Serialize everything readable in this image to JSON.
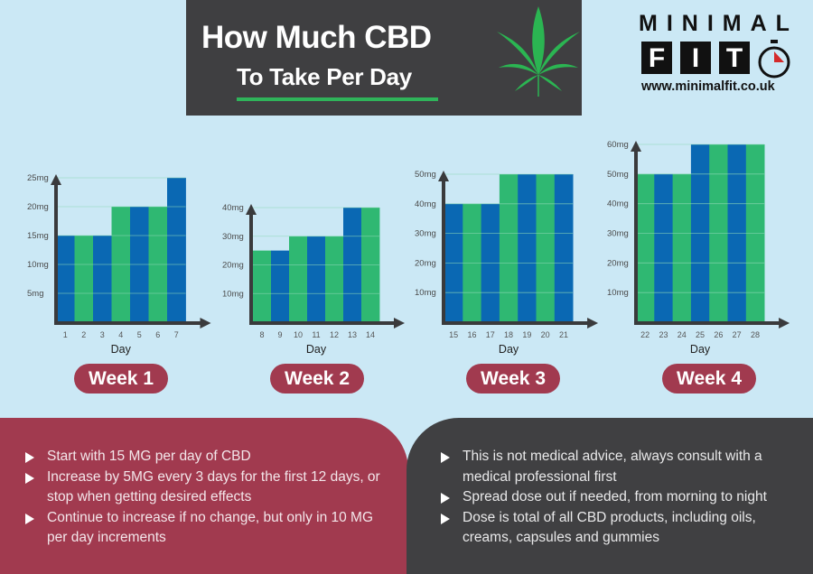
{
  "header": {
    "title_line1": "How Much CBD",
    "title_line2": "To Take Per Day",
    "icon": "cannabis-leaf-icon"
  },
  "logo": {
    "top": "MINIMAL",
    "letters": [
      "F",
      "I",
      "T"
    ],
    "url": "www.minimalfit.co.uk",
    "icon": "stopwatch-icon"
  },
  "colors": {
    "blue": "#0a68b3",
    "green": "#2fb872",
    "maroon": "#a13a4f",
    "dark": "#3f3f41",
    "background": "#cbe8f5",
    "axis": "#3a3a3c"
  },
  "chart_data": [
    {
      "type": "bar",
      "title": "Week 1",
      "xlabel": "Day",
      "ylabel": "",
      "categories": [
        "1",
        "2",
        "3",
        "4",
        "5",
        "6",
        "7"
      ],
      "values": [
        15,
        15,
        15,
        20,
        20,
        20,
        25
      ],
      "bar_colors": [
        "blue",
        "green",
        "blue",
        "green",
        "blue",
        "green",
        "blue"
      ],
      "yticks": [
        5,
        10,
        15,
        20,
        25
      ],
      "ytick_labels": [
        "5mg",
        "10mg",
        "15mg",
        "20mg",
        "25mg"
      ],
      "ylim": [
        0,
        25
      ],
      "grid": true
    },
    {
      "type": "bar",
      "title": "Week 2",
      "xlabel": "Day",
      "ylabel": "",
      "categories": [
        "8",
        "9",
        "10",
        "11",
        "12",
        "13",
        "14"
      ],
      "values": [
        25,
        25,
        30,
        30,
        30,
        40,
        40
      ],
      "bar_colors": [
        "green",
        "blue",
        "green",
        "blue",
        "green",
        "blue",
        "green"
      ],
      "yticks": [
        10,
        20,
        30,
        40
      ],
      "ytick_labels": [
        "10mg",
        "20mg",
        "30mg",
        "40mg"
      ],
      "ylim": [
        0,
        40
      ],
      "grid": true
    },
    {
      "type": "bar",
      "title": "Week 3",
      "xlabel": "Day",
      "ylabel": "",
      "categories": [
        "15",
        "16",
        "17",
        "18",
        "19",
        "20",
        "21"
      ],
      "values": [
        40,
        40,
        40,
        50,
        50,
        50,
        50
      ],
      "bar_colors": [
        "blue",
        "green",
        "blue",
        "green",
        "blue",
        "green",
        "blue"
      ],
      "yticks": [
        10,
        20,
        30,
        40,
        50
      ],
      "ytick_labels": [
        "10mg",
        "20mg",
        "30mg",
        "40mg",
        "50mg"
      ],
      "ylim": [
        0,
        50
      ],
      "grid": true
    },
    {
      "type": "bar",
      "title": "Week 4",
      "xlabel": "Day",
      "ylabel": "",
      "categories": [
        "22",
        "23",
        "24",
        "25",
        "26",
        "27",
        "28"
      ],
      "values": [
        50,
        50,
        50,
        60,
        60,
        60,
        60
      ],
      "bar_colors": [
        "green",
        "blue",
        "green",
        "blue",
        "green",
        "blue",
        "green"
      ],
      "yticks": [
        10,
        20,
        30,
        40,
        50,
        60
      ],
      "ytick_labels": [
        "10mg",
        "20mg",
        "30mg",
        "40mg",
        "50mg",
        "60mg"
      ],
      "ylim": [
        0,
        60
      ],
      "grid": true
    }
  ],
  "weeks": [
    "Week 1",
    "Week 2",
    "Week 3",
    "Week 4"
  ],
  "left_panel": {
    "bullets": [
      "Start with 15 MG per day of CBD",
      "Increase by 5MG every 3 days for the first 12 days, or stop when getting desired effects",
      "Continue to increase if no change, but only in 10 MG per day increments"
    ]
  },
  "right_panel": {
    "bullets": [
      "This is not medical advice, always consult with a medical professional first",
      "Spread dose out if needed, from morning to night",
      "Dose is total of all CBD products, including oils, creams, capsules and gummies"
    ]
  }
}
